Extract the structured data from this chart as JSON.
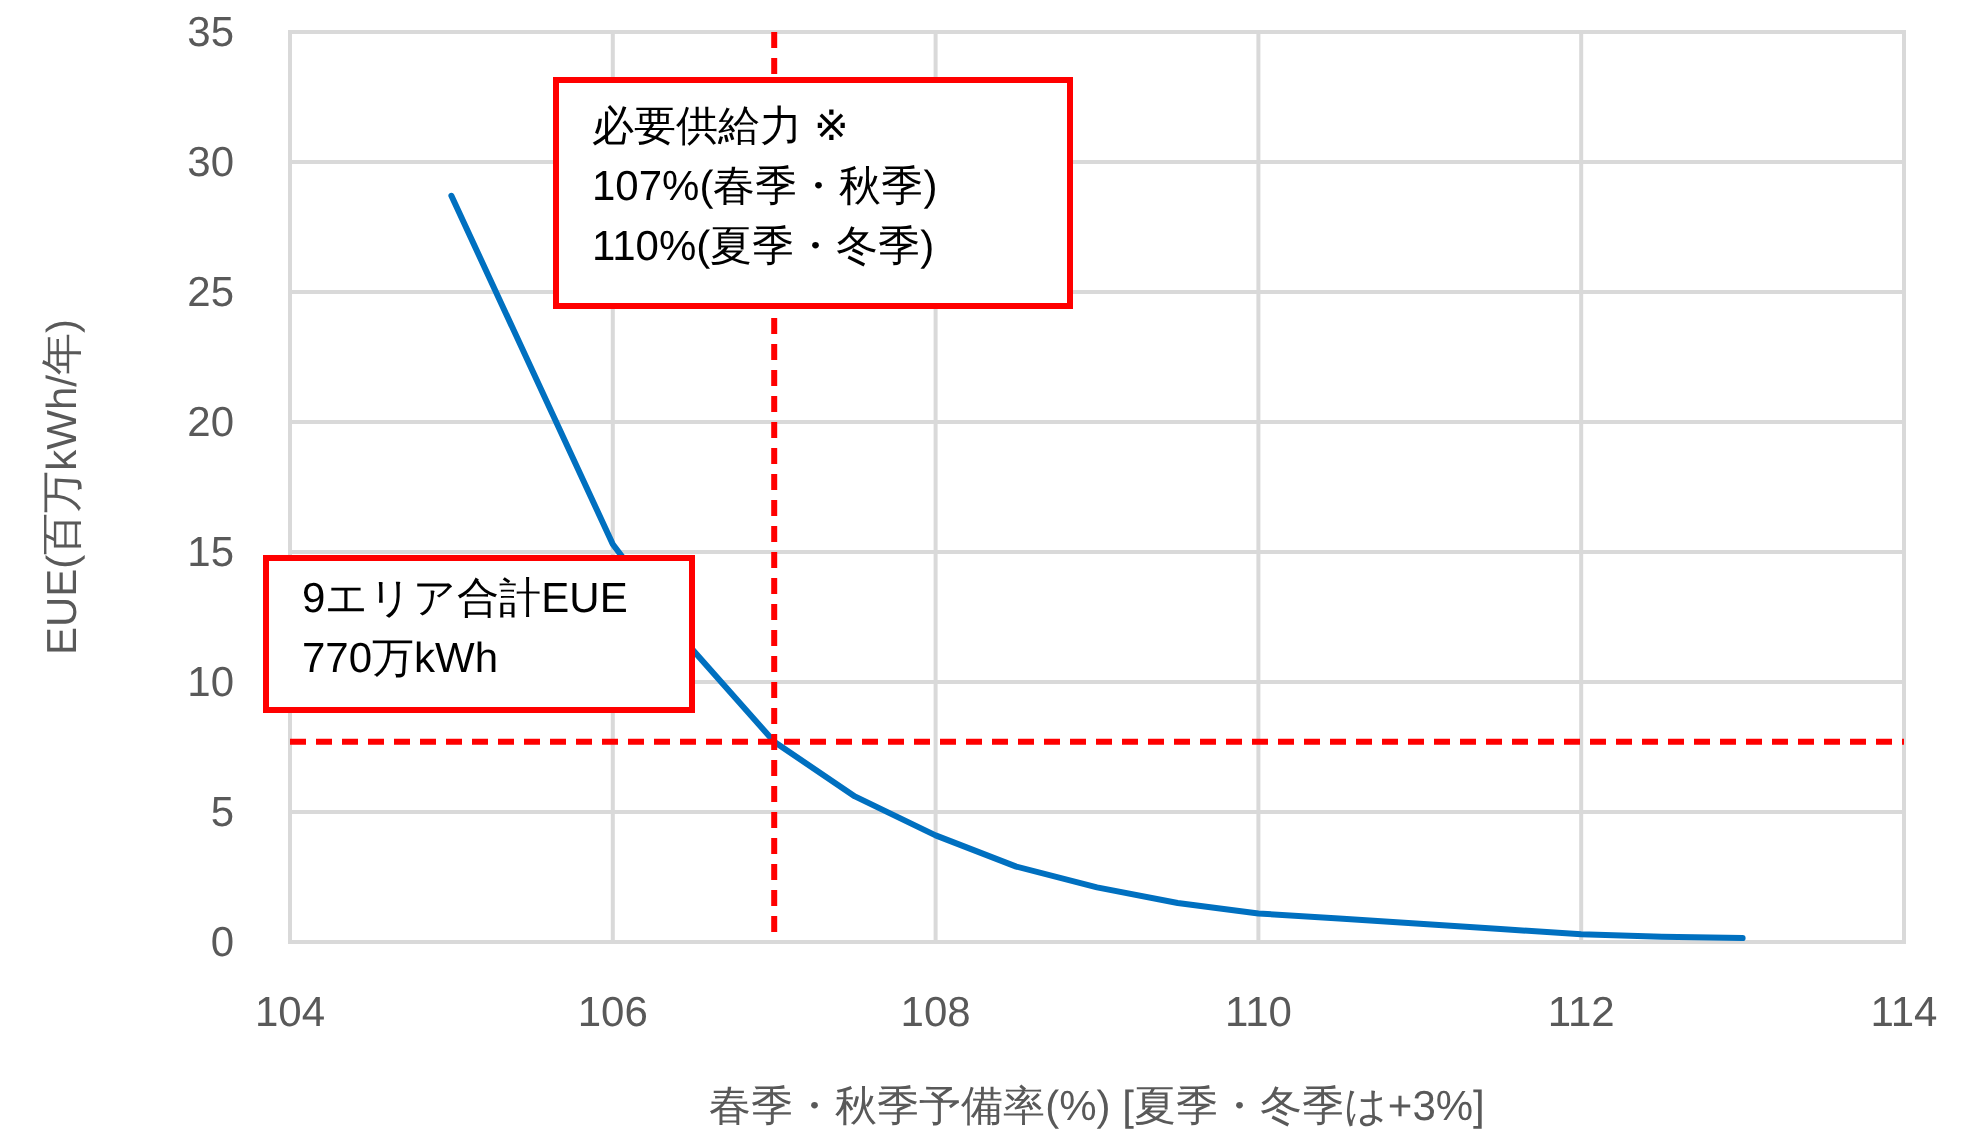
{
  "chart_data": {
    "type": "line",
    "xlabel": "春季・秋季予備率(%)  [夏季・冬季は+3%]",
    "ylabel": "EUE(百万kWh/年)",
    "series": [
      {
        "color": "#0070c0",
        "x": [
          105,
          105.5,
          106,
          106.5,
          107,
          107.5,
          108,
          108.5,
          109,
          109.5,
          110,
          110.5,
          111,
          111.5,
          112,
          112.5,
          113
        ],
        "values": [
          28.7,
          22,
          15.3,
          11.2,
          7.7,
          5.6,
          4.1,
          2.9,
          2.1,
          1.5,
          1.1,
          0.9,
          0.7,
          0.5,
          0.3,
          0.2,
          0.15
        ]
      }
    ],
    "xlim": [
      104,
      114
    ],
    "xticks": [
      104,
      106,
      108,
      110,
      112,
      114
    ],
    "ylim": [
      0,
      35
    ],
    "yticks": [
      0,
      5,
      10,
      15,
      20,
      25,
      30,
      35
    ],
    "grid": true,
    "marker": "none",
    "line_style": "solid",
    "ref_lines": [
      {
        "axis": "x",
        "value": 107,
        "label": "必要供給力 ※\n107%(春季・秋季)\n110%(夏季・冬季)",
        "color": "#ff0000",
        "line_style": "dashed"
      },
      {
        "axis": "y",
        "value": 7.7,
        "label": "9エリア合計EUE\n770万kWh",
        "color": "#ff0000",
        "line_style": "dashed"
      }
    ]
  }
}
